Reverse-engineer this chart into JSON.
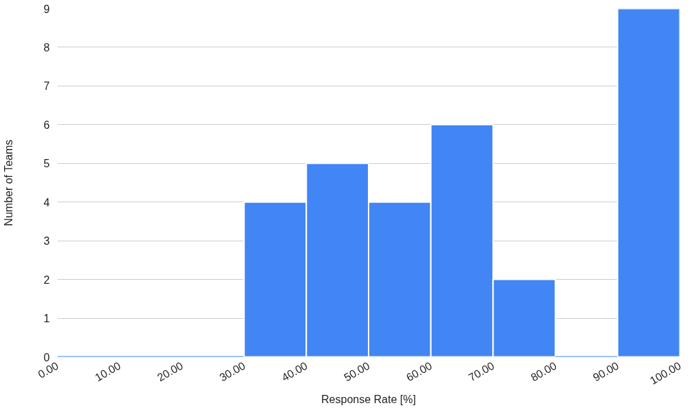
{
  "chart_data": {
    "type": "histogram",
    "xlabel": "Response Rate [%]",
    "ylabel": "Number of Teams",
    "bins": [
      0,
      10,
      20,
      30,
      40,
      50,
      60,
      70,
      80,
      90,
      100
    ],
    "values": [
      0,
      0,
      0,
      4,
      5,
      4,
      6,
      2,
      0,
      9
    ],
    "color": "#4285f4",
    "xlim": [
      0,
      100
    ],
    "xticks": [
      {
        "value": 0,
        "label": "0.00"
      },
      {
        "value": 10,
        "label": "10.00"
      },
      {
        "value": 20,
        "label": "20.00"
      },
      {
        "value": 30,
        "label": "30.00"
      },
      {
        "value": 40,
        "label": "40.00"
      },
      {
        "value": 50,
        "label": "50.00"
      },
      {
        "value": 60,
        "label": "60.00"
      },
      {
        "value": 70,
        "label": "70.00"
      },
      {
        "value": 80,
        "label": "80.00"
      },
      {
        "value": 90,
        "label": "90.00"
      },
      {
        "value": 100,
        "label": "100.00"
      }
    ],
    "ylim": [
      0,
      9
    ],
    "yticks": [
      0,
      1,
      2,
      3,
      4,
      5,
      6,
      7,
      8,
      9
    ],
    "grid": "y"
  }
}
